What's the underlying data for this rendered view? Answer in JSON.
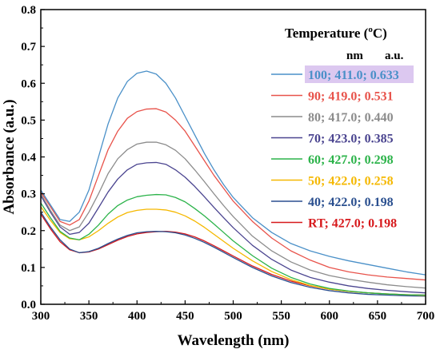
{
  "chart_data": {
    "type": "line",
    "xlabel": "Wavelength (nm)",
    "ylabel": "Absorbance (a.u.)",
    "xlim": [
      300,
      700
    ],
    "ylim": [
      0.0,
      0.8
    ],
    "xticks": [
      300,
      350,
      400,
      450,
      500,
      550,
      600,
      650,
      700
    ],
    "xtick_labels": [
      "300",
      "350",
      "400",
      "450",
      "500",
      "550",
      "600",
      "650",
      "700"
    ],
    "yticks": [
      0.0,
      0.1,
      0.2,
      0.3,
      0.4,
      0.5,
      0.6,
      0.7,
      0.8
    ],
    "ytick_labels": [
      "0.0",
      "0.1",
      "0.2",
      "0.3",
      "0.4",
      "0.5",
      "0.6",
      "0.7",
      "0.8"
    ],
    "grid": false,
    "legend_title": "Temperature (",
    "legend_title_sup": "o",
    "legend_title_end": "C)",
    "legend_header_nm": "nm",
    "legend_header_au": "a.u.",
    "legend_position": "top-right",
    "x": [
      300,
      310,
      320,
      330,
      340,
      350,
      360,
      370,
      380,
      390,
      400,
      410,
      420,
      430,
      440,
      450,
      460,
      470,
      480,
      490,
      500,
      520,
      540,
      560,
      580,
      600,
      620,
      640,
      660,
      680,
      700
    ],
    "series": [
      {
        "name": "100; 411.0; 0.633",
        "color": "#4a90c8",
        "highlight": true,
        "values": [
          0.31,
          0.27,
          0.23,
          0.225,
          0.25,
          0.31,
          0.4,
          0.49,
          0.56,
          0.605,
          0.627,
          0.633,
          0.625,
          0.6,
          0.56,
          0.51,
          0.46,
          0.41,
          0.365,
          0.325,
          0.29,
          0.235,
          0.195,
          0.165,
          0.145,
          0.13,
          0.118,
          0.108,
          0.098,
          0.088,
          0.08
        ]
      },
      {
        "name": "90; 419.0; 0.531",
        "color": "#e8534b",
        "highlight": false,
        "values": [
          0.305,
          0.265,
          0.225,
          0.215,
          0.23,
          0.28,
          0.35,
          0.42,
          0.47,
          0.505,
          0.523,
          0.53,
          0.531,
          0.522,
          0.5,
          0.47,
          0.43,
          0.39,
          0.35,
          0.315,
          0.28,
          0.225,
          0.18,
          0.145,
          0.12,
          0.1,
          0.088,
          0.08,
          0.074,
          0.07,
          0.066
        ]
      },
      {
        "name": "80; 417.0; 0.440",
        "color": "#8c8c8c",
        "highlight": false,
        "values": [
          0.3,
          0.255,
          0.215,
          0.2,
          0.21,
          0.25,
          0.3,
          0.355,
          0.395,
          0.42,
          0.435,
          0.44,
          0.44,
          0.433,
          0.418,
          0.395,
          0.365,
          0.333,
          0.3,
          0.268,
          0.238,
          0.185,
          0.145,
          0.115,
          0.093,
          0.078,
          0.068,
          0.06,
          0.053,
          0.048,
          0.044
        ]
      },
      {
        "name": "70; 423.0; 0.385",
        "color": "#4b4590",
        "highlight": false,
        "values": [
          0.295,
          0.25,
          0.21,
          0.19,
          0.195,
          0.22,
          0.262,
          0.305,
          0.34,
          0.365,
          0.38,
          0.384,
          0.385,
          0.38,
          0.365,
          0.345,
          0.32,
          0.292,
          0.263,
          0.235,
          0.208,
          0.16,
          0.122,
          0.093,
          0.073,
          0.06,
          0.05,
          0.043,
          0.038,
          0.034,
          0.031
        ]
      },
      {
        "name": "60; 427.0; 0.298",
        "color": "#2cb34a",
        "highlight": false,
        "values": [
          0.275,
          0.235,
          0.198,
          0.18,
          0.175,
          0.19,
          0.215,
          0.245,
          0.268,
          0.283,
          0.292,
          0.296,
          0.298,
          0.297,
          0.29,
          0.278,
          0.26,
          0.24,
          0.218,
          0.195,
          0.172,
          0.132,
          0.098,
          0.073,
          0.055,
          0.043,
          0.036,
          0.031,
          0.028,
          0.026,
          0.025
        ]
      },
      {
        "name": "50; 422.0; 0.258",
        "color": "#f5b800",
        "highlight": false,
        "values": [
          0.265,
          0.228,
          0.195,
          0.178,
          0.175,
          0.183,
          0.2,
          0.22,
          0.237,
          0.249,
          0.255,
          0.258,
          0.258,
          0.256,
          0.25,
          0.24,
          0.226,
          0.209,
          0.19,
          0.171,
          0.152,
          0.118,
          0.089,
          0.067,
          0.051,
          0.041,
          0.035,
          0.031,
          0.028,
          0.026,
          0.024
        ]
      },
      {
        "name": "40; 422.0; 0.198",
        "color": "#2a4f8f",
        "highlight": false,
        "values": [
          0.25,
          0.21,
          0.175,
          0.15,
          0.14,
          0.143,
          0.152,
          0.165,
          0.177,
          0.187,
          0.194,
          0.197,
          0.198,
          0.197,
          0.194,
          0.188,
          0.179,
          0.168,
          0.155,
          0.141,
          0.127,
          0.1,
          0.077,
          0.059,
          0.046,
          0.037,
          0.031,
          0.027,
          0.025,
          0.023,
          0.022
        ]
      },
      {
        "name": "RT; 427.0; 0.198",
        "color": "#d7191c",
        "highlight": false,
        "values": [
          0.245,
          0.205,
          0.17,
          0.148,
          0.14,
          0.142,
          0.15,
          0.162,
          0.174,
          0.184,
          0.191,
          0.195,
          0.197,
          0.198,
          0.196,
          0.191,
          0.183,
          0.172,
          0.159,
          0.145,
          0.131,
          0.104,
          0.081,
          0.063,
          0.05,
          0.041,
          0.035,
          0.031,
          0.028,
          0.026,
          0.025
        ]
      }
    ]
  }
}
